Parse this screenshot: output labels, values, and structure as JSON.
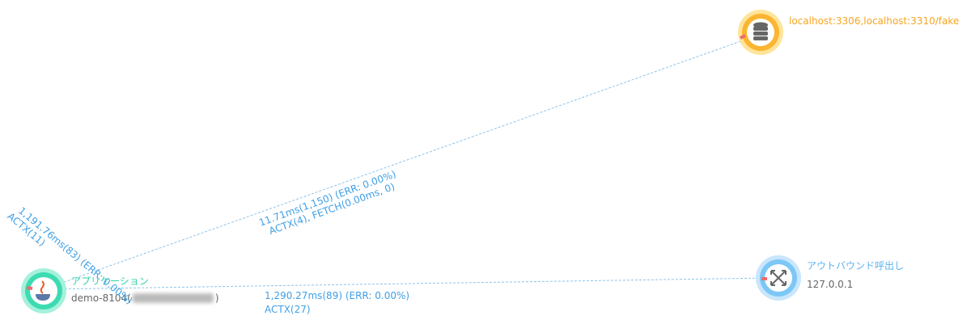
{
  "nodes": [
    {
      "label": "localhost:3306,localhost:3310/fake"
    },
    {
      "label": "アプリケーション",
      "sublabel": "demo-8104(",
      "sublabel_end": ")"
    },
    {
      "label": "アウトバウンド呼出し",
      "sublabel": "127.0.0.1"
    }
  ],
  "edges": [
    {
      "lines": [
        "11.71ms(1,150) (ERR: 0.00%)",
        "ACTX(4), FETCH(0.00ms, 0)"
      ]
    },
    {
      "lines": [
        "1,290.27ms(89) (ERR: 0.00%)",
        "ACTX(27)"
      ]
    },
    {
      "lines": [
        "1,191.76ms(83) (ERR: 0.00%)",
        "ACTX(11)"
      ]
    }
  ]
}
